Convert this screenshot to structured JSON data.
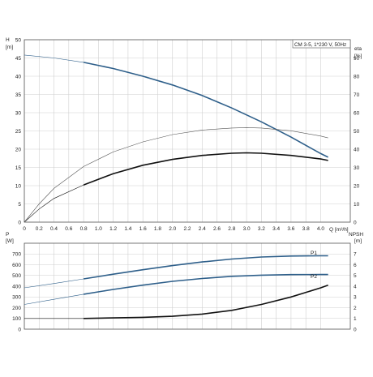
{
  "chart_data": [
    {
      "type": "line",
      "title": "CM 3-5, 1*230 V, 50Hz",
      "left_axis": {
        "label": "H",
        "unit": "[m]",
        "ylim": [
          0,
          50
        ],
        "ticks": [
          "0",
          "5",
          "10",
          "15",
          "20",
          "25",
          "30",
          "35",
          "40",
          "45",
          "50"
        ]
      },
      "right_axis": {
        "label": "eta",
        "unit": "[%]",
        "ylim": [
          0,
          100
        ],
        "ticks": [
          "0",
          "10",
          "20",
          "30",
          "40",
          "50",
          "60",
          "70",
          "80",
          "90"
        ]
      },
      "x_axis": {
        "label": "Q",
        "unit": "[m³/h]",
        "xlim": [
          0,
          4.4
        ],
        "ticks": [
          "0",
          "0.2",
          "0.4",
          "0.6",
          "0.8",
          "1.0",
          "1.2",
          "1.4",
          "1.6",
          "1.8",
          "2.0",
          "2.2",
          "2.4",
          "2.6",
          "2.8",
          "3.0",
          "3.2",
          "3.4",
          "3.6",
          "3.8",
          "4.0"
        ]
      },
      "grid": true,
      "series": [
        {
          "axis": "left",
          "color": "#2e5f8a",
          "x": [
            0,
            0.4,
            0.8,
            1.2,
            1.6,
            2.0,
            2.4,
            2.8,
            3.2,
            3.6,
            4.0,
            4.1
          ],
          "y": [
            45.8,
            45.0,
            43.8,
            42.1,
            40.0,
            37.6,
            34.7,
            31.3,
            27.5,
            23.3,
            18.8,
            17.8
          ],
          "operating_from": 0.8
        },
        {
          "axis": "left",
          "color": "#111111",
          "x": [
            0,
            0.2,
            0.4,
            0.8,
            1.2,
            1.6,
            2.0,
            2.4,
            2.8,
            3.0,
            3.2,
            3.6,
            4.0,
            4.1
          ],
          "y": [
            0,
            3.6,
            6.5,
            10.2,
            13.3,
            15.6,
            17.2,
            18.3,
            18.9,
            19.0,
            18.9,
            18.3,
            17.3,
            16.9
          ],
          "operating_from": 0.8
        },
        {
          "axis": "right",
          "color": "#555555",
          "x": [
            0,
            0.2,
            0.4,
            0.8,
            1.2,
            1.6,
            2.0,
            2.4,
            2.8,
            3.0,
            3.2,
            3.6,
            4.0,
            4.1
          ],
          "y": [
            0,
            10,
            18.5,
            30.5,
            38.5,
            44.0,
            48.0,
            50.5,
            51.6,
            51.8,
            51.6,
            50.1,
            47.2,
            46.2
          ],
          "operating_from": 99
        }
      ]
    },
    {
      "type": "line",
      "left_axis": {
        "label": "P",
        "unit": "[W]",
        "ylim": [
          0,
          800
        ],
        "ticks": [
          "0",
          "100",
          "200",
          "300",
          "400",
          "500",
          "600",
          "700"
        ]
      },
      "right_axis": {
        "label": "NPSH",
        "unit": "[m]",
        "ylim": [
          0,
          8
        ],
        "ticks": [
          "0",
          "1",
          "2",
          "3",
          "4",
          "5",
          "6",
          "7"
        ]
      },
      "x_axis": {
        "xlim": [
          0,
          4.4
        ]
      },
      "grid": true,
      "series": [
        {
          "name": "P1",
          "axis": "left",
          "color": "#2e5f8a",
          "x": [
            0,
            0.4,
            0.8,
            1.2,
            1.6,
            2.0,
            2.4,
            2.8,
            3.2,
            3.6,
            4.0,
            4.1
          ],
          "y": [
            385,
            425,
            468,
            512,
            553,
            592,
            626,
            653,
            672,
            681,
            683,
            683
          ],
          "operating_from": 0.8
        },
        {
          "name": "P2",
          "axis": "left",
          "color": "#2e5f8a",
          "x": [
            0,
            0.4,
            0.8,
            1.2,
            1.6,
            2.0,
            2.4,
            2.8,
            3.2,
            3.6,
            4.0,
            4.1
          ],
          "y": [
            230,
            278,
            325,
            370,
            410,
            445,
            472,
            492,
            503,
            508,
            509,
            509
          ],
          "operating_from": 0.8
        },
        {
          "axis": "right",
          "color": "#111111",
          "x": [
            0,
            0.4,
            0.8,
            1.2,
            1.6,
            2.0,
            2.4,
            2.8,
            3.2,
            3.6,
            4.0,
            4.1
          ],
          "y": [
            1.0,
            1.0,
            1.0,
            1.05,
            1.1,
            1.2,
            1.4,
            1.75,
            2.3,
            3.0,
            3.85,
            4.1
          ],
          "operating_from": 0.8
        }
      ]
    }
  ]
}
